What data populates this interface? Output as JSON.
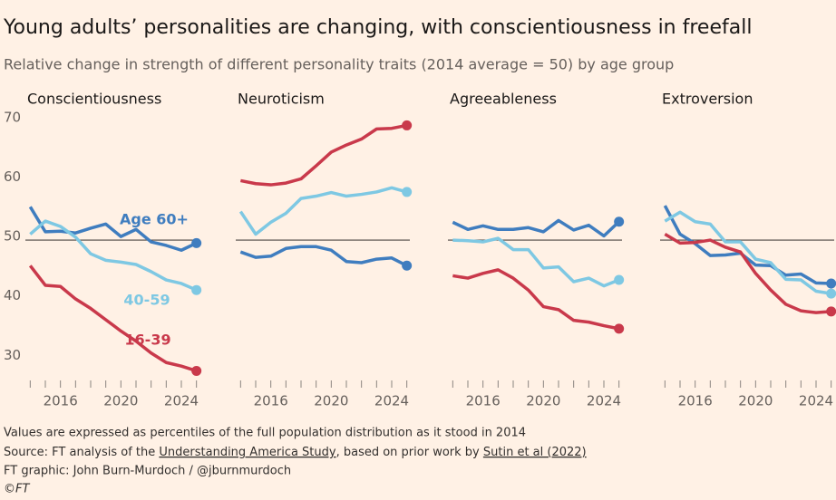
{
  "title": "Young adults’ personalities are changing, with conscientiousness in freefall",
  "subtitle": "Relative change in strength of different personality traits (2014 average = 50) by age group",
  "notes": [
    "Values are expressed as percentiles of the full population distribution as it stood in 2014",
    "Source: FT analysis of the ",
    "Understanding America Study",
    ", based on prior work by ",
    "Sutin et al (2022)",
    "FT graphic: John Burn-Murdoch / @jburnmurdoch",
    "©FT"
  ],
  "chart_data": [
    {
      "type": "line",
      "title": "Conscientiousness",
      "x": [
        2014,
        2015,
        2016,
        2017,
        2018,
        2019,
        2020,
        2021,
        2022,
        2023,
        2024,
        2025
      ],
      "xlim": [
        2013.8,
        2025.2
      ],
      "xticks": [
        2016,
        2020,
        2024
      ],
      "ylim": [
        27,
        71.5
      ],
      "yticks": [
        30,
        40,
        50,
        60,
        70
      ],
      "baseline": 50,
      "series": [
        {
          "name": "Age 60+",
          "color": "#3f7dbf",
          "values": [
            55.6,
            51.4,
            51.5,
            51.2,
            52,
            52.7,
            50.6,
            51.8,
            49.7,
            49.1,
            48.3,
            49.5
          ]
        },
        {
          "name": "40-59",
          "color": "#7ec8e3",
          "values": [
            51,
            53.2,
            52.3,
            50.5,
            47.7,
            46.6,
            46.3,
            45.9,
            44.7,
            43.3,
            42.7,
            41.6
          ]
        },
        {
          "name": "16-39",
          "color": "#c9394b",
          "values": [
            45.7,
            42.4,
            42.2,
            40.1,
            38.5,
            36.6,
            34.7,
            33,
            31,
            29.4,
            28.8,
            28
          ]
        }
      ]
    },
    {
      "type": "line",
      "title": "Neuroticism",
      "x": [
        2014,
        2015,
        2016,
        2017,
        2018,
        2019,
        2020,
        2021,
        2022,
        2023,
        2024,
        2025
      ],
      "xlim": [
        2013.8,
        2025.2
      ],
      "xticks": [
        2016,
        2020,
        2024
      ],
      "ylim": [
        27,
        71.5
      ],
      "baseline": 50,
      "series": [
        {
          "color": "#3f7dbf",
          "values": [
            48,
            47.1,
            47.3,
            48.6,
            48.9,
            48.9,
            48.3,
            46.4,
            46.2,
            46.8,
            47,
            45.7
          ]
        },
        {
          "color": "#7ec8e3",
          "values": [
            54.8,
            51,
            53,
            54.5,
            57,
            57.4,
            58,
            57.4,
            57.7,
            58.1,
            58.8,
            58.1
          ]
        },
        {
          "color": "#c9394b",
          "values": [
            60,
            59.5,
            59.3,
            59.6,
            60.3,
            62.5,
            64.8,
            66,
            67,
            68.7,
            68.8,
            69.3
          ]
        }
      ]
    },
    {
      "type": "line",
      "title": "Agreeableness",
      "x": [
        2014,
        2015,
        2016,
        2017,
        2018,
        2019,
        2020,
        2021,
        2022,
        2023,
        2024,
        2025
      ],
      "xlim": [
        2013.8,
        2025.2
      ],
      "xticks": [
        2016,
        2020,
        2024
      ],
      "ylim": [
        27,
        71.5
      ],
      "baseline": 50,
      "series": [
        {
          "color": "#3f7dbf",
          "values": [
            53,
            51.8,
            52.4,
            51.8,
            51.8,
            52.1,
            51.4,
            53.3,
            51.7,
            52.5,
            50.7,
            53.1
          ]
        },
        {
          "color": "#7ec8e3",
          "values": [
            50,
            49.9,
            49.7,
            50.3,
            48.4,
            48.4,
            45.3,
            45.5,
            43,
            43.6,
            42.3,
            43.3
          ]
        },
        {
          "color": "#c9394b",
          "values": [
            44,
            43.6,
            44.4,
            45,
            43.6,
            41.6,
            38.8,
            38.3,
            36.5,
            36.2,
            35.6,
            35.1
          ]
        }
      ]
    },
    {
      "type": "line",
      "title": "Extroversion",
      "x": [
        2014,
        2015,
        2016,
        2017,
        2018,
        2019,
        2020,
        2021,
        2022,
        2023,
        2024,
        2025
      ],
      "xlim": [
        2013.8,
        2025.2
      ],
      "xticks": [
        2016,
        2020,
        2024
      ],
      "ylim": [
        27,
        71.5
      ],
      "baseline": 50,
      "series": [
        {
          "color": "#3f7dbf",
          "values": [
            55.8,
            51,
            49.4,
            47.4,
            47.5,
            47.8,
            45.8,
            45.7,
            44.1,
            44.3,
            42.8,
            42.7
          ]
        },
        {
          "color": "#7ec8e3",
          "values": [
            53.2,
            54.7,
            53.1,
            52.7,
            49.7,
            49.7,
            46.8,
            46.2,
            43.4,
            43.3,
            41.4,
            41
          ]
        },
        {
          "color": "#c9394b",
          "values": [
            51,
            49.5,
            49.6,
            50,
            48.8,
            48,
            44.4,
            41.6,
            39.2,
            38.1,
            37.8,
            38
          ]
        }
      ]
    }
  ]
}
